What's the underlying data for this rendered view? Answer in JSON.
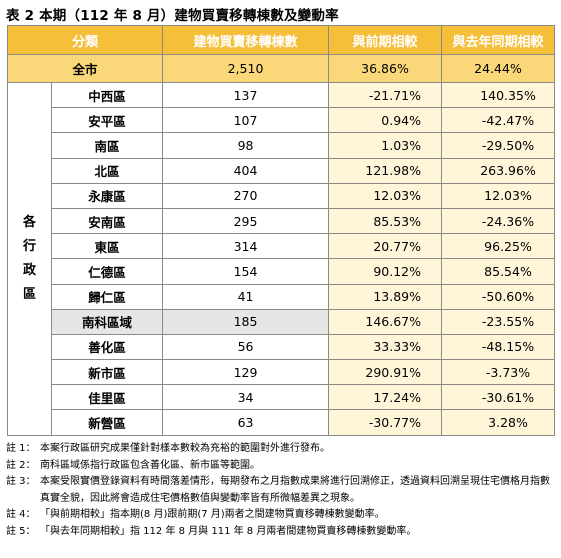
{
  "title": "表 2 本期（112 年 8 月）建物買賣移轉棟數及變動率",
  "headers": [
    "分類",
    "建物買賣移轉棟數",
    "與前期相較",
    "與去年同期相較"
  ],
  "total": {
    "label": "全市",
    "count": "2,510",
    "prev": "36.86%",
    "yoy": "24.44%"
  },
  "group_label": [
    "各",
    "行",
    "政",
    "區"
  ],
  "rows": [
    {
      "district": "中西區",
      "count": "137",
      "prev": "-21.71%",
      "yoy": "140.35%"
    },
    {
      "district": "安平區",
      "count": "107",
      "prev": "0.94%",
      "yoy": "-42.47%"
    },
    {
      "district": "南區",
      "count": "98",
      "prev": "1.03%",
      "yoy": "-29.50%"
    },
    {
      "district": "北區",
      "count": "404",
      "prev": "121.98%",
      "yoy": "263.96%"
    },
    {
      "district": "永康區",
      "count": "270",
      "prev": "12.03%",
      "yoy": "12.03%"
    },
    {
      "district": "安南區",
      "count": "295",
      "prev": "85.53%",
      "yoy": "-24.36%"
    },
    {
      "district": "東區",
      "count": "314",
      "prev": "20.77%",
      "yoy": "96.25%"
    },
    {
      "district": "仁德區",
      "count": "154",
      "prev": "90.12%",
      "yoy": "85.54%"
    },
    {
      "district": "歸仁區",
      "count": "41",
      "prev": "13.89%",
      "yoy": "-50.60%"
    },
    {
      "district": "南科區域",
      "count": "185",
      "prev": "146.67%",
      "yoy": "-23.55%"
    },
    {
      "district": "善化區",
      "count": "56",
      "prev": "33.33%",
      "yoy": "-48.15%"
    },
    {
      "district": "新市區",
      "count": "129",
      "prev": "290.91%",
      "yoy": "-3.73%"
    },
    {
      "district": "佳里區",
      "count": "34",
      "prev": "17.24%",
      "yoy": "-30.61%"
    },
    {
      "district": "新營區",
      "count": "63",
      "prev": "-30.77%",
      "yoy": "3.28%"
    }
  ],
  "notes": [
    {
      "tag": "註 1：",
      "text": "本案行政區研究成果僅針對樣本數較為充裕的範圍對外進行發布。"
    },
    {
      "tag": "註 2：",
      "text": "南科區域係指行政區包含善化區、新市區等範圍。"
    },
    {
      "tag": "註 3：",
      "text": "本案受限實價登錄資料有時間落差情形，每期發布之月指數成果將進行回溯修正，透過資料回溯呈現住宅價格月指數真實全貌，因此將會造成住宅價格數值與變動率皆有所微幅差異之現象。"
    },
    {
      "tag": "註 4：",
      "text": "「與前期相較」指本期(8 月)跟前期(7 月)兩者之間建物買賣移轉棟數變動率。"
    },
    {
      "tag": "註 5：",
      "text": "「與去年同期相較」指 112 年 8 月與 111 年 8 月兩者間建物買賣移轉棟數變動率。"
    }
  ]
}
